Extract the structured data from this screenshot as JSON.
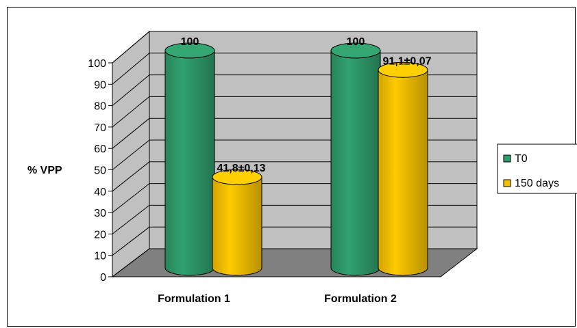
{
  "chart_data": {
    "type": "bar",
    "ylabel": "% VPP",
    "categories": [
      "Formulation 1",
      "Formulation 2"
    ],
    "series": [
      {
        "name": "T0",
        "values": [
          100,
          100
        ],
        "labels": [
          "100",
          "100"
        ],
        "color": "#2f9a6a"
      },
      {
        "name": "150 days",
        "values": [
          41.8,
          91.1
        ],
        "labels": [
          "41,8±0,13",
          "91,1±0,07"
        ],
        "color": "#f5c000"
      }
    ],
    "ylim": [
      0,
      100
    ],
    "yticks": [
      0,
      10,
      20,
      30,
      40,
      50,
      60,
      70,
      80,
      90,
      100
    ],
    "grid": true,
    "legend": "right",
    "style": "3d-cylinder",
    "colors": {
      "wall": "#c0c0c0",
      "floor": "#808080"
    }
  }
}
